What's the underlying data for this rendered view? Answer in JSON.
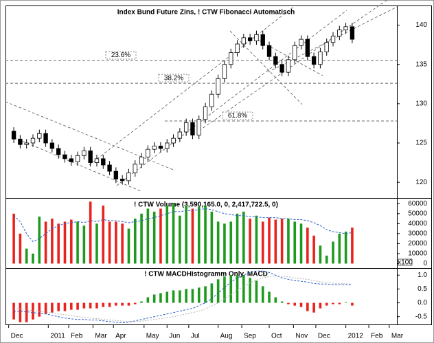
{
  "chart_data": [
    {
      "type": "candlestick",
      "title": "Index Bund Future Zins, ! CTW Fibonacci Automatisch",
      "open": [
        126.5,
        125.5,
        124.8,
        125.0,
        125.6,
        126.2,
        125.0,
        124.3,
        123.5,
        123.0,
        122.6,
        123.4,
        124.0,
        122.5,
        123.0,
        122.2,
        121.4,
        120.4,
        120.2,
        121.2,
        122.3,
        123.2,
        124.2,
        124.6,
        124.3,
        125.0,
        125.6,
        126.4,
        127.6,
        126.0,
        128.0,
        129.6,
        131.2,
        133.2,
        135.0,
        136.5,
        137.6,
        138.4,
        138.0,
        138.8,
        137.4,
        136.0,
        135.0,
        134.0,
        135.6,
        137.4,
        138.2,
        136.0,
        135.0,
        136.6,
        137.8,
        138.6,
        139.4,
        139.8
      ],
      "high": [
        127.0,
        126.0,
        125.5,
        126.1,
        126.7,
        126.7,
        125.5,
        124.8,
        124.0,
        123.5,
        123.9,
        124.5,
        124.5,
        123.5,
        123.5,
        122.7,
        121.9,
        120.9,
        121.7,
        122.8,
        123.7,
        124.7,
        125.1,
        125.1,
        125.5,
        126.1,
        126.9,
        128.1,
        128.1,
        128.5,
        130.1,
        131.7,
        133.7,
        135.5,
        137.0,
        138.1,
        138.9,
        138.9,
        139.3,
        139.3,
        137.9,
        136.5,
        135.5,
        136.1,
        137.9,
        138.7,
        138.7,
        136.5,
        137.1,
        138.3,
        139.1,
        139.9,
        140.3,
        140.3
      ],
      "low": [
        125.0,
        124.3,
        124.3,
        124.5,
        125.1,
        124.5,
        123.8,
        123.0,
        122.5,
        122.1,
        122.1,
        122.9,
        122.0,
        122.0,
        121.7,
        120.9,
        119.9,
        119.7,
        119.7,
        120.7,
        121.8,
        122.7,
        123.7,
        123.8,
        123.8,
        124.5,
        125.1,
        125.9,
        125.5,
        125.5,
        127.5,
        129.1,
        130.7,
        132.7,
        134.5,
        136.0,
        137.1,
        137.5,
        137.5,
        136.9,
        135.5,
        134.5,
        133.5,
        133.5,
        135.1,
        136.9,
        135.5,
        134.5,
        134.5,
        136.1,
        137.3,
        138.1,
        138.9,
        137.7
      ],
      "close": [
        125.5,
        124.8,
        125.0,
        125.6,
        126.2,
        125.0,
        124.3,
        123.5,
        123.0,
        122.6,
        123.4,
        124.0,
        122.5,
        123.0,
        122.2,
        121.4,
        120.4,
        120.2,
        121.2,
        122.3,
        123.2,
        124.2,
        124.6,
        124.3,
        125.0,
        125.6,
        126.4,
        127.6,
        126.0,
        128.0,
        129.6,
        131.2,
        133.2,
        135.0,
        136.5,
        137.6,
        138.4,
        138.0,
        138.8,
        137.4,
        136.0,
        135.0,
        134.0,
        135.6,
        137.4,
        138.2,
        136.0,
        135.0,
        136.6,
        137.8,
        138.6,
        139.4,
        139.8,
        138.2
      ],
      "up_color": "#ffffff",
      "down_color": "#000000",
      "levels": [
        {
          "label": "23.6%",
          "value": 135.5
        },
        {
          "label": "38.2%",
          "value": 132.6
        },
        {
          "label": "61.8%",
          "value": 127.8
        }
      ],
      "ylim": [
        118,
        142.5
      ],
      "yticks": [
        120,
        125,
        130,
        135,
        140
      ],
      "xlim": [
        -1.3,
        60
      ],
      "xticks": [
        {
          "value": -0.8,
          "label": "Dec"
        },
        {
          "value": 5.4,
          "label": "2011"
        },
        {
          "value": 8.6,
          "label": "Feb"
        },
        {
          "value": 12.4,
          "label": "Mar"
        },
        {
          "value": 15.6,
          "label": "Apr"
        },
        {
          "value": 20.4,
          "label": "May"
        },
        {
          "value": 24,
          "label": "Jun"
        },
        {
          "value": 27.4,
          "label": "Jul"
        },
        {
          "value": 32,
          "label": "Aug"
        },
        {
          "value": 35.7,
          "label": "Sep"
        },
        {
          "value": 40,
          "label": "Oct"
        },
        {
          "value": 43.8,
          "label": "Nov"
        },
        {
          "value": 47.3,
          "label": "Dec"
        },
        {
          "value": 52,
          "label": "2012"
        },
        {
          "value": 55.6,
          "label": "Feb"
        },
        {
          "value": 58.8,
          "label": "Mar"
        }
      ]
    },
    {
      "type": "bar",
      "title": "! CTW Volume (3,590,165.0, 0, 2,417,722.5, 0)",
      "values": [
        50000,
        30000,
        15000,
        10000,
        47000,
        42000,
        45000,
        40000,
        42000,
        44000,
        42000,
        38000,
        62000,
        40000,
        58000,
        42000,
        42000,
        40000,
        35000,
        45000,
        50000,
        55000,
        52000,
        55000,
        58000,
        60000,
        48000,
        58000,
        55000,
        57000,
        58000,
        52000,
        42000,
        40000,
        42000,
        50000,
        52000,
        45000,
        48000,
        42000,
        46000,
        44000,
        45000,
        45000,
        42000,
        40000,
        36000,
        28000,
        18000,
        8000,
        22000,
        30000,
        32000,
        36000
      ],
      "average": [
        48000,
        42000,
        30000,
        22000,
        25000,
        30000,
        35000,
        38000,
        40000,
        41000,
        42000,
        41000,
        43000,
        42000,
        44000,
        43000,
        43000,
        42000,
        41000,
        42000,
        43000,
        45000,
        46000,
        48000,
        50000,
        52000,
        52000,
        53000,
        53000,
        54000,
        55000,
        54000,
        52000,
        50000,
        49000,
        48000,
        48000,
        47000,
        47000,
        46000,
        46000,
        46000,
        45000,
        45000,
        44000,
        44000,
        43000,
        41000,
        38000,
        34000,
        32000,
        31000,
        30000,
        31000
      ],
      "up_color": "#1e9a1e",
      "down_color": "#e8231e",
      "average_color": "#2a5cc8",
      "unit_label": "x100",
      "ylim": [
        -4500,
        65000
      ],
      "yticks": [
        0,
        10000,
        20000,
        30000,
        40000,
        50000,
        60000
      ]
    },
    {
      "type": "histogram",
      "title": "! CTW MACDHistogramm Only, MACD",
      "values": [
        -0.6,
        -0.7,
        -0.7,
        -0.6,
        -0.5,
        -0.4,
        -0.35,
        -0.3,
        -0.3,
        -0.25,
        -0.25,
        -0.2,
        -0.2,
        -0.2,
        -0.15,
        -0.15,
        -0.1,
        -0.1,
        -0.1,
        -0.05,
        0.05,
        0.2,
        0.3,
        0.35,
        0.4,
        0.45,
        0.45,
        0.5,
        0.5,
        0.55,
        0.6,
        0.7,
        0.85,
        0.95,
        1.0,
        1.0,
        1.0,
        0.9,
        0.8,
        0.6,
        0.4,
        0.2,
        0.05,
        -0.05,
        -0.1,
        -0.15,
        -0.3,
        -0.35,
        -0.2,
        -0.1,
        -0.05,
        -0.05,
        0.02,
        -0.1
      ],
      "positive_color": "#1e9a1e",
      "negative_color": "#e8231e",
      "series": [
        {
          "color": "#2a5cc8",
          "values": [
            -0.3,
            -0.3,
            -0.32,
            -0.35,
            -0.38,
            -0.4,
            -0.45,
            -0.5,
            -0.55,
            -0.58,
            -0.6,
            -0.6,
            -0.62,
            -0.62,
            -0.65,
            -0.68,
            -0.7,
            -0.72,
            -0.7,
            -0.65,
            -0.6,
            -0.55,
            -0.5,
            -0.45,
            -0.4,
            -0.35,
            -0.3,
            -0.25,
            -0.2,
            -0.1,
            0.0,
            0.15,
            0.35,
            0.55,
            0.75,
            0.9,
            1.0,
            1.1,
            1.15,
            1.15,
            1.1,
            1.0,
            0.9,
            0.85,
            0.8,
            0.78,
            0.75,
            0.7,
            0.68,
            0.68,
            0.66,
            0.66,
            0.65,
            0.65
          ]
        },
        {
          "color": "#b0b0b0",
          "values": [
            -0.2,
            -0.22,
            -0.25,
            -0.28,
            -0.3,
            -0.33,
            -0.36,
            -0.4,
            -0.43,
            -0.46,
            -0.5,
            -0.52,
            -0.55,
            -0.57,
            -0.6,
            -0.62,
            -0.64,
            -0.66,
            -0.67,
            -0.67,
            -0.66,
            -0.63,
            -0.6,
            -0.57,
            -0.53,
            -0.5,
            -0.45,
            -0.4,
            -0.35,
            -0.3,
            -0.22,
            -0.12,
            0.0,
            0.15,
            0.3,
            0.45,
            0.6,
            0.72,
            0.82,
            0.9,
            0.95,
            0.97,
            0.96,
            0.94,
            0.9,
            0.87,
            0.85,
            0.8,
            0.76,
            0.73,
            0.71,
            0.7,
            0.69,
            0.68
          ]
        }
      ],
      "ylim": [
        -0.78,
        1.23
      ],
      "yticks": [
        {
          "value": 1.0,
          "label": "1.0"
        },
        0.5,
        {
          "value": 0.0,
          "label": "0.0"
        },
        -0.5
      ]
    }
  ]
}
